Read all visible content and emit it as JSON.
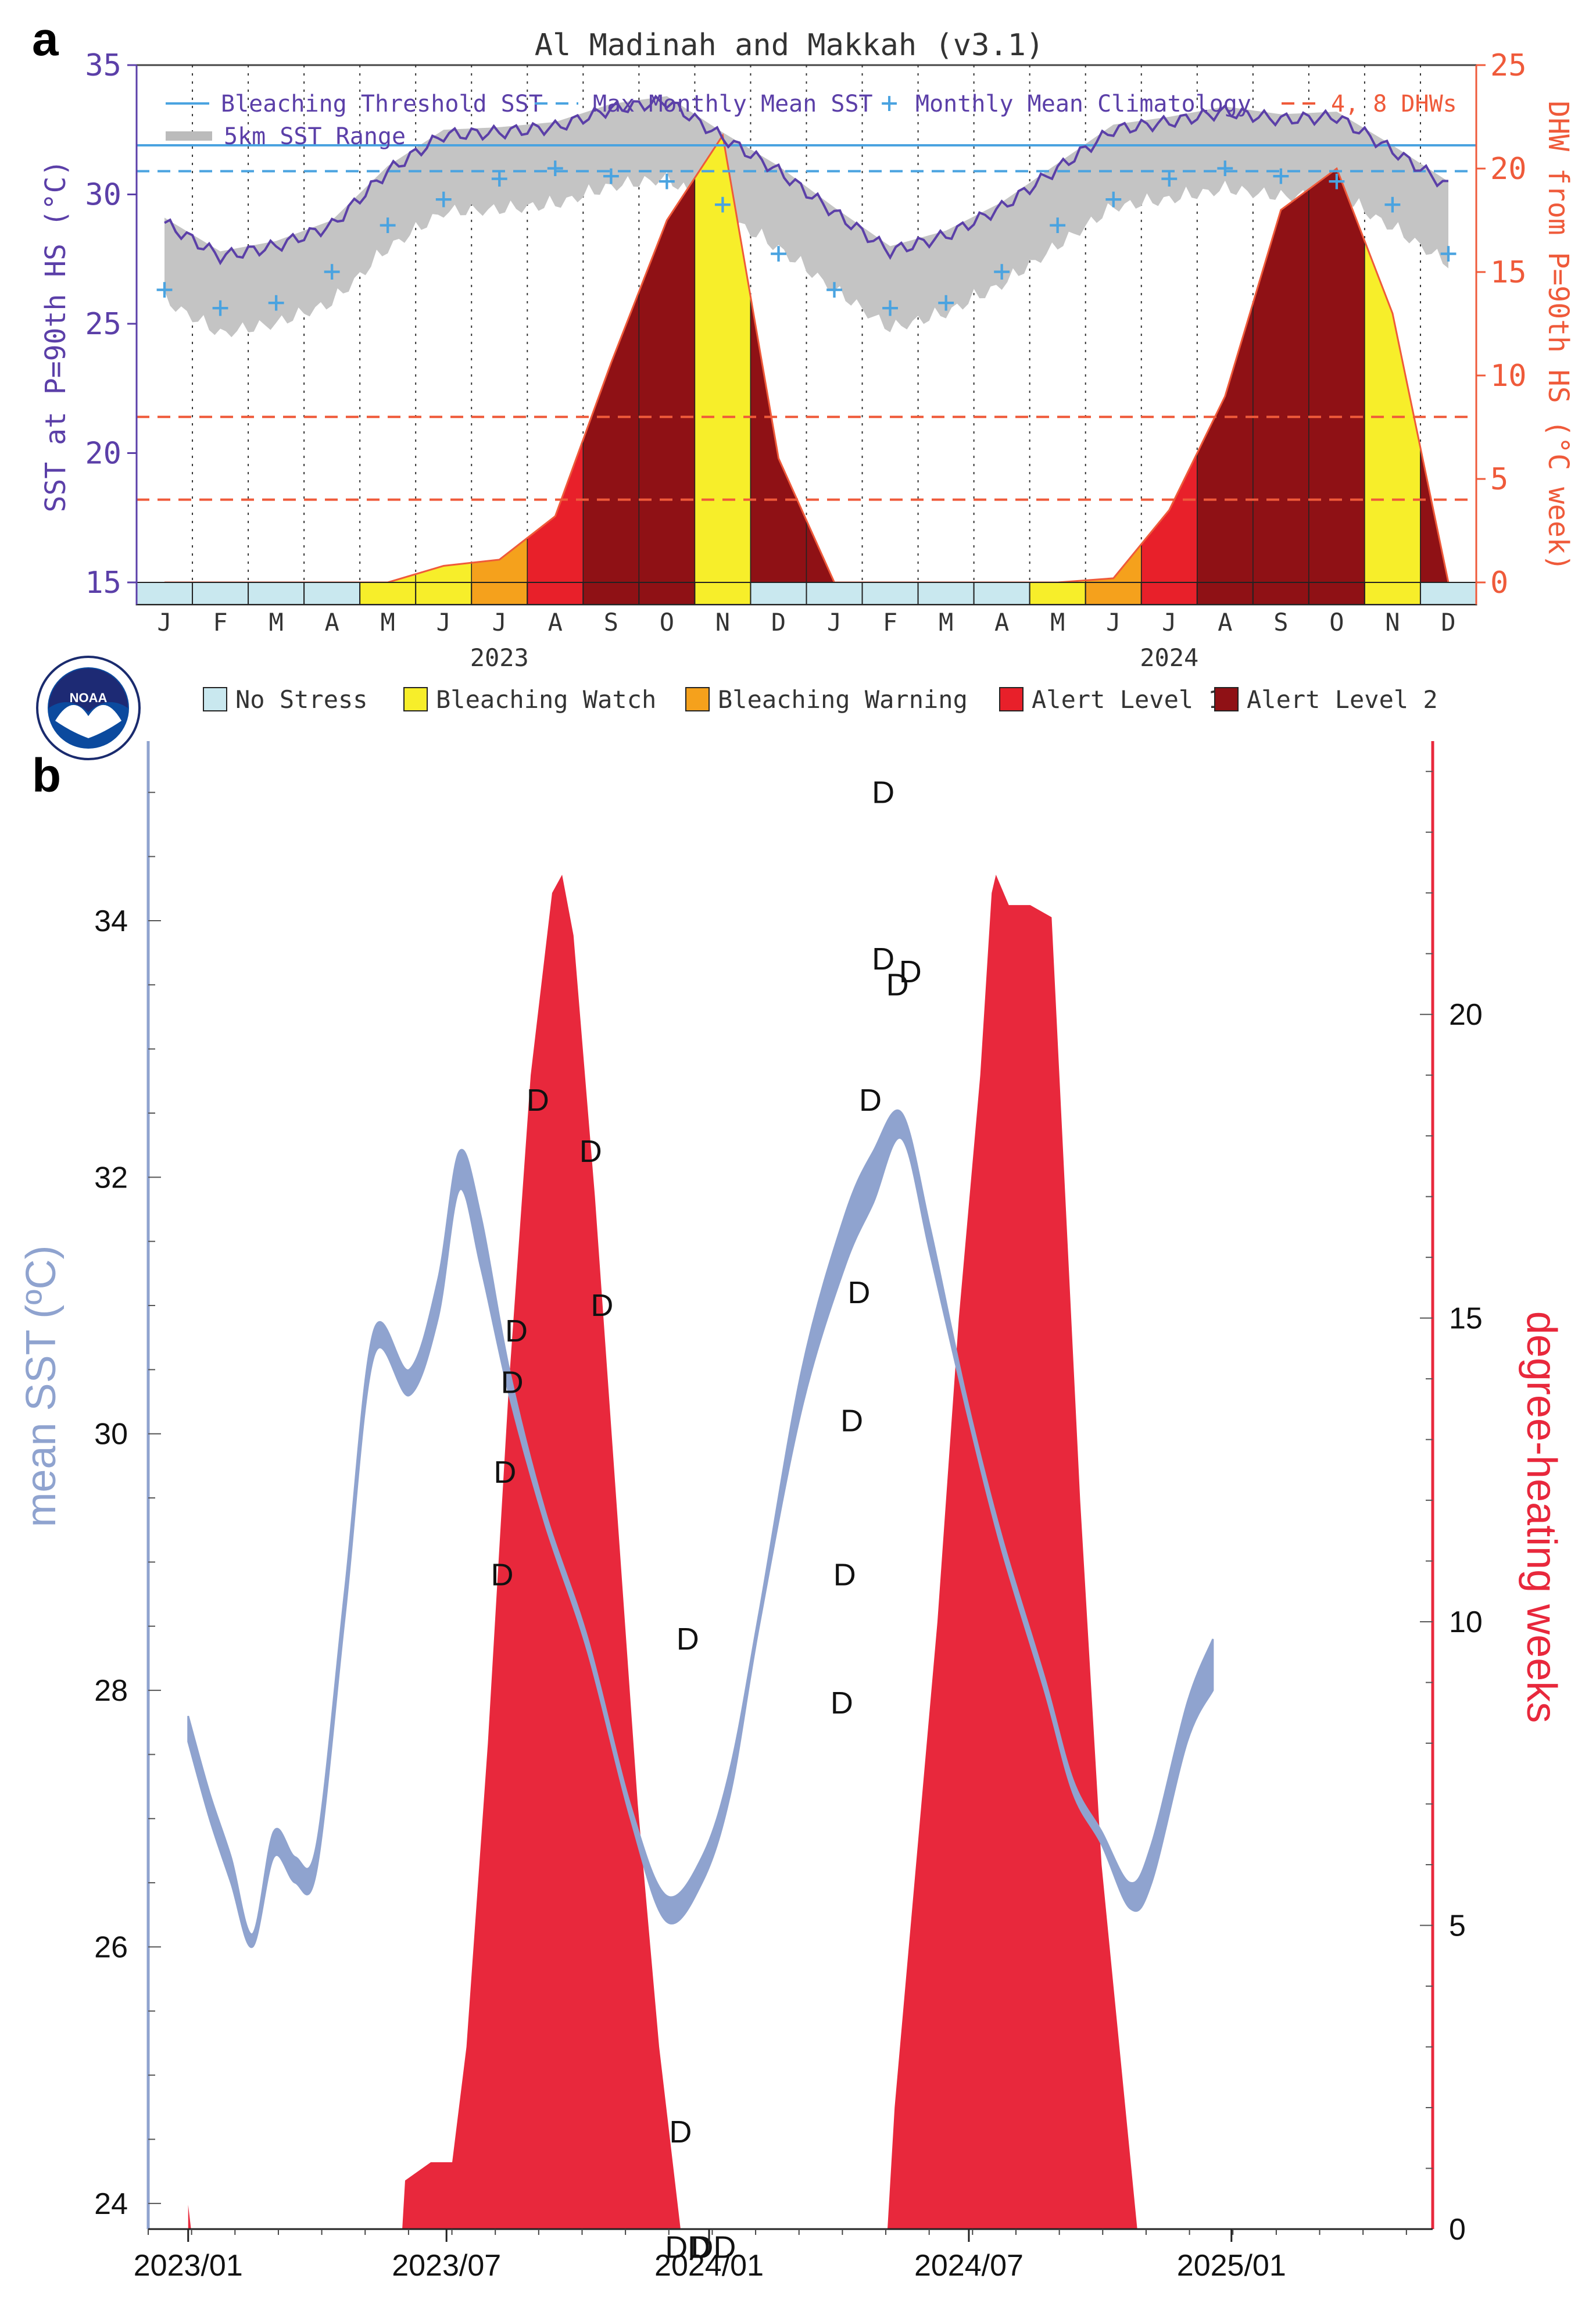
{
  "panel_a": {
    "letter": "a",
    "chart_data": {
      "type": "area",
      "title": "Al Madinah and Makkah (v3.1)",
      "ylabel_left": "SST at P=90th HS (°C)",
      "ylabel_right": "DHW from P=90th HS (°C week)",
      "y_left_range": [
        15,
        35
      ],
      "y_left_ticks": [
        "15",
        "20",
        "25",
        "30",
        "35"
      ],
      "y_right_range": [
        0,
        25
      ],
      "y_right_ticks": [
        "0",
        "5",
        "10",
        "15",
        "20",
        "25"
      ],
      "x_months": [
        "J",
        "F",
        "M",
        "A",
        "M",
        "J",
        "J",
        "A",
        "S",
        "O",
        "N",
        "D",
        "J",
        "F",
        "M",
        "A",
        "M",
        "J",
        "J",
        "A",
        "S",
        "O",
        "N",
        "D"
      ],
      "x_years": [
        "2023",
        "2024"
      ],
      "legend": {
        "threshold": "Bleaching Threshold SST",
        "mmm": "Max Monthly Mean SST",
        "clim": "Monthly Mean Climatology",
        "dhw_levels": "4, 8 DHWs",
        "range": "5km SST Range"
      },
      "bleaching_threshold_sst": 31.9,
      "max_monthly_mean_sst": 30.9,
      "dhw_reference_levels": [
        4,
        8
      ],
      "monthly_climatology": [
        26.3,
        25.6,
        25.8,
        27.0,
        28.8,
        29.8,
        30.6,
        31.0,
        30.7,
        30.5,
        29.6,
        27.7,
        26.3,
        25.6,
        25.8,
        27.0,
        28.8,
        29.8,
        30.6,
        31.0,
        30.7,
        30.5,
        29.6,
        27.7
      ],
      "sst_monthly": [
        28.9,
        27.6,
        28.0,
        28.8,
        30.9,
        32.3,
        32.4,
        32.6,
        33.3,
        33.6,
        32.2,
        30.9,
        29.3,
        27.8,
        28.4,
        29.5,
        31.0,
        32.5,
        32.8,
        33.2,
        32.9,
        33.0,
        31.7,
        30.3
      ],
      "dhw_monthly": [
        0,
        0,
        0,
        0,
        0,
        0.8,
        1.1,
        3.2,
        10.6,
        17.5,
        21.6,
        6.0,
        0,
        0,
        0,
        0,
        0,
        0.2,
        3.5,
        9.0,
        18.0,
        20.0,
        13.0,
        0
      ],
      "stress_bar": [
        "nostress",
        "nostress",
        "nostress",
        "nostress",
        "watch",
        "watch",
        "warning",
        "alert1",
        "alert2",
        "alert2",
        "watch",
        "nostress",
        "nostress",
        "nostress",
        "nostress",
        "nostress",
        "watch",
        "warning",
        "alert1",
        "alert2",
        "alert2",
        "alert2",
        "watch",
        "nostress"
      ],
      "stress_legend": [
        {
          "key": "nostress",
          "label": "No Stress",
          "color": "#c9e8ef"
        },
        {
          "key": "watch",
          "label": "Bleaching Watch",
          "color": "#f7ee2a"
        },
        {
          "key": "warning",
          "label": "Bleaching Warning",
          "color": "#f5a11c"
        },
        {
          "key": "alert1",
          "label": "Alert Level 1",
          "color": "#e8202a"
        },
        {
          "key": "alert2",
          "label": "Alert Level 2",
          "color": "#8f1115"
        }
      ],
      "logo_text": "NOAA"
    }
  },
  "panel_b": {
    "letter": "b",
    "chart_data": {
      "type": "area",
      "ylabel_left": "mean SST (ºC)",
      "ylabel_right": "degree-heating weeks",
      "y_left_range": [
        23.8,
        35.4
      ],
      "y_left_ticks": [
        24,
        26,
        28,
        30,
        32,
        34
      ],
      "y_right_range": [
        0,
        24.5
      ],
      "y_right_ticks": [
        0,
        5,
        10,
        15,
        20
      ],
      "x_ticks": [
        {
          "label": "2023/01",
          "day": 0
        },
        {
          "label": "2023/07",
          "day": 181
        },
        {
          "label": "2024/01",
          "day": 365
        },
        {
          "label": "2024/07",
          "day": 547
        },
        {
          "label": "2025/01",
          "day": 731
        }
      ],
      "x_range": [
        -28,
        872
      ],
      "sst_series": [
        {
          "day": 0,
          "lo": 27.6,
          "hi": 27.8
        },
        {
          "day": 15,
          "lo": 27.0,
          "hi": 27.2
        },
        {
          "day": 30,
          "lo": 26.5,
          "hi": 26.7
        },
        {
          "day": 45,
          "lo": 26.0,
          "hi": 26.1
        },
        {
          "day": 60,
          "lo": 26.7,
          "hi": 26.9
        },
        {
          "day": 75,
          "lo": 26.5,
          "hi": 26.7
        },
        {
          "day": 90,
          "lo": 26.6,
          "hi": 26.8
        },
        {
          "day": 110,
          "lo": 28.6,
          "hi": 28.8
        },
        {
          "day": 130,
          "lo": 30.6,
          "hi": 30.8
        },
        {
          "day": 155,
          "lo": 30.3,
          "hi": 30.5
        },
        {
          "day": 175,
          "lo": 30.9,
          "hi": 31.2
        },
        {
          "day": 190,
          "lo": 31.9,
          "hi": 32.2
        },
        {
          "day": 205,
          "lo": 31.3,
          "hi": 31.7
        },
        {
          "day": 225,
          "lo": 30.3,
          "hi": 30.5
        },
        {
          "day": 250,
          "lo": 29.3,
          "hi": 29.4
        },
        {
          "day": 280,
          "lo": 28.3,
          "hi": 28.4
        },
        {
          "day": 310,
          "lo": 27.0,
          "hi": 27.1
        },
        {
          "day": 335,
          "lo": 26.2,
          "hi": 26.4
        },
        {
          "day": 360,
          "lo": 26.5,
          "hi": 26.7
        },
        {
          "day": 380,
          "lo": 27.2,
          "hi": 27.4
        },
        {
          "day": 400,
          "lo": 28.5,
          "hi": 28.6
        },
        {
          "day": 430,
          "lo": 30.2,
          "hi": 30.5
        },
        {
          "day": 460,
          "lo": 31.3,
          "hi": 31.7
        },
        {
          "day": 480,
          "lo": 31.8,
          "hi": 32.2
        },
        {
          "day": 500,
          "lo": 32.3,
          "hi": 32.5
        },
        {
          "day": 520,
          "lo": 31.4,
          "hi": 31.6
        },
        {
          "day": 545,
          "lo": 30.2,
          "hi": 30.3
        },
        {
          "day": 570,
          "lo": 29.1,
          "hi": 29.2
        },
        {
          "day": 600,
          "lo": 28.0,
          "hi": 28.1
        },
        {
          "day": 620,
          "lo": 27.2,
          "hi": 27.3
        },
        {
          "day": 640,
          "lo": 26.8,
          "hi": 26.9
        },
        {
          "day": 660,
          "lo": 26.3,
          "hi": 26.5
        },
        {
          "day": 675,
          "lo": 26.5,
          "hi": 26.8
        },
        {
          "day": 700,
          "lo": 27.6,
          "hi": 27.9
        },
        {
          "day": 718,
          "lo": 28.0,
          "hi": 28.4
        }
      ],
      "dhw_series": [
        {
          "day": 0,
          "dhw": 0.4
        },
        {
          "day": 2,
          "dhw": 0
        },
        {
          "day": 150,
          "dhw": 0
        },
        {
          "day": 152,
          "dhw": 0.8
        },
        {
          "day": 170,
          "dhw": 1.1
        },
        {
          "day": 185,
          "dhw": 1.1
        },
        {
          "day": 195,
          "dhw": 3
        },
        {
          "day": 210,
          "dhw": 8
        },
        {
          "day": 225,
          "dhw": 14
        },
        {
          "day": 240,
          "dhw": 19
        },
        {
          "day": 255,
          "dhw": 22
        },
        {
          "day": 262,
          "dhw": 22.3
        },
        {
          "day": 270,
          "dhw": 21.3
        },
        {
          "day": 285,
          "dhw": 17
        },
        {
          "day": 300,
          "dhw": 12
        },
        {
          "day": 315,
          "dhw": 7
        },
        {
          "day": 330,
          "dhw": 3
        },
        {
          "day": 345,
          "dhw": 0
        },
        {
          "day": 490,
          "dhw": 0
        },
        {
          "day": 495,
          "dhw": 2
        },
        {
          "day": 510,
          "dhw": 6
        },
        {
          "day": 525,
          "dhw": 10
        },
        {
          "day": 540,
          "dhw": 15
        },
        {
          "day": 555,
          "dhw": 19
        },
        {
          "day": 563,
          "dhw": 22
        },
        {
          "day": 566,
          "dhw": 22.3
        },
        {
          "day": 575,
          "dhw": 21.8
        },
        {
          "day": 590,
          "dhw": 21.8
        },
        {
          "day": 605,
          "dhw": 21.6
        },
        {
          "day": 625,
          "dhw": 12
        },
        {
          "day": 640,
          "dhw": 6
        },
        {
          "day": 665,
          "dhw": 0
        }
      ],
      "d_markers": [
        {
          "text": "D",
          "day": 220,
          "sst": 28.9
        },
        {
          "day": 222,
          "sst": 29.7,
          "text": "D"
        },
        {
          "day": 227,
          "sst": 30.4,
          "text": "D"
        },
        {
          "day": 230,
          "sst": 30.8,
          "text": "D"
        },
        {
          "day": 245,
          "sst": 32.6,
          "text": "D"
        },
        {
          "day": 282,
          "sst": 32.2,
          "text": "D"
        },
        {
          "day": 290,
          "sst": 31.0,
          "text": "D"
        },
        {
          "day": 350,
          "sst": 28.4,
          "text": "D"
        },
        {
          "day": 458,
          "sst": 27.9,
          "text": "D"
        },
        {
          "day": 460,
          "sst": 28.9,
          "text": "D"
        },
        {
          "day": 465,
          "sst": 30.1,
          "text": "D"
        },
        {
          "day": 470,
          "sst": 31.1,
          "text": "D"
        },
        {
          "day": 478,
          "sst": 32.6,
          "text": "D"
        },
        {
          "day": 487,
          "sst": 33.7,
          "text": "D"
        },
        {
          "day": 497,
          "sst": 33.5,
          "text": "D"
        },
        {
          "day": 506,
          "sst": 33.6,
          "text": "D"
        },
        {
          "day": 487,
          "sst": 35.0,
          "text": "D"
        }
      ],
      "dd_markers": [
        {
          "text": "D",
          "dhw": 1.6,
          "day": 345
        },
        {
          "text": "DD",
          "dhw": -0.3,
          "day": 350
        },
        {
          "text": "DD",
          "dhw": -0.3,
          "day": 368
        }
      ],
      "colors": {
        "sst": "#8fa3cf",
        "dhw": "#e8283c",
        "axis_left": "#8fa3cf",
        "axis_right": "#e8283c"
      }
    }
  }
}
